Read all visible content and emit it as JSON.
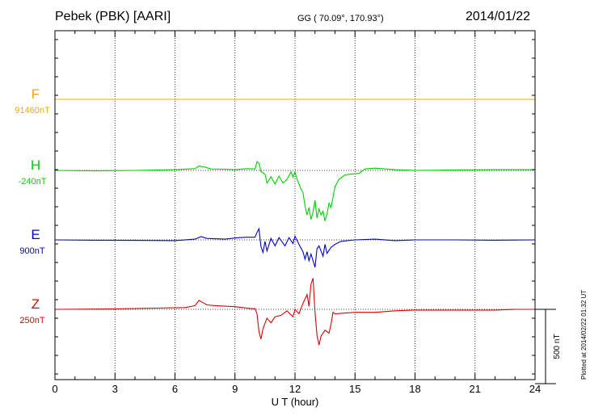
{
  "header": {
    "station": "Pebek (PBK)  [AARI]",
    "coords": "GG ( 70.09°, 170.93°)",
    "date": "2014/01/22"
  },
  "plotted_note": "Plotted at 2014/02/22 01:32 UT",
  "scale_label": "500 nT",
  "chart_data": {
    "type": "line",
    "xlabel": "U T (hour)",
    "xlim": [
      0,
      24
    ],
    "x_ticks": [
      "0",
      "3",
      "6",
      "9",
      "12",
      "15",
      "18",
      "21",
      "24"
    ],
    "scale_nT": 500,
    "series": [
      {
        "name": "F",
        "baseline_label": "91460nT",
        "color": "#f2a900",
        "points": [
          [
            0,
            0
          ],
          [
            24,
            0
          ]
        ]
      },
      {
        "name": "H",
        "baseline_label": "-240nT",
        "color": "#00d000",
        "points": [
          [
            0,
            0
          ],
          [
            2,
            -3
          ],
          [
            4,
            0
          ],
          [
            6,
            5
          ],
          [
            7,
            12
          ],
          [
            7.2,
            30
          ],
          [
            7.5,
            22
          ],
          [
            7.8,
            10
          ],
          [
            8.5,
            8
          ],
          [
            9,
            5
          ],
          [
            9.6,
            12
          ],
          [
            10,
            10
          ],
          [
            10.1,
            60
          ],
          [
            10.2,
            48
          ],
          [
            10.3,
            -8
          ],
          [
            10.5,
            -25
          ],
          [
            10.6,
            -85
          ],
          [
            10.8,
            -42
          ],
          [
            11,
            -92
          ],
          [
            11.2,
            -38
          ],
          [
            11.4,
            -85
          ],
          [
            11.6,
            -60
          ],
          [
            11.8,
            -10
          ],
          [
            11.9,
            -45
          ],
          [
            12,
            -10
          ],
          [
            12.1,
            -60
          ],
          [
            12.3,
            -125
          ],
          [
            12.4,
            -150
          ],
          [
            12.5,
            -240
          ],
          [
            12.6,
            -300
          ],
          [
            12.7,
            -250
          ],
          [
            12.8,
            -330
          ],
          [
            12.9,
            -280
          ],
          [
            13,
            -200
          ],
          [
            13.1,
            -320
          ],
          [
            13.2,
            -260
          ],
          [
            13.3,
            -300
          ],
          [
            13.4,
            -275
          ],
          [
            13.5,
            -340
          ],
          [
            13.6,
            -290
          ],
          [
            13.7,
            -220
          ],
          [
            13.8,
            -250
          ],
          [
            14,
            -110
          ],
          [
            14.2,
            -60
          ],
          [
            14.5,
            -30
          ],
          [
            14.8,
            -25
          ],
          [
            15.2,
            -20
          ],
          [
            15.5,
            10
          ],
          [
            16,
            15
          ],
          [
            17,
            5
          ],
          [
            18,
            0
          ],
          [
            20,
            3
          ],
          [
            22,
            5
          ],
          [
            24,
            5
          ]
        ]
      },
      {
        "name": "E",
        "baseline_label": "900nT",
        "color": "#0000d0",
        "points": [
          [
            0,
            0
          ],
          [
            2,
            -2
          ],
          [
            4,
            -3
          ],
          [
            6,
            -5
          ],
          [
            7,
            5
          ],
          [
            7.3,
            22
          ],
          [
            7.6,
            10
          ],
          [
            8.5,
            5
          ],
          [
            9.2,
            15
          ],
          [
            9.6,
            18
          ],
          [
            10,
            18
          ],
          [
            10.1,
            50
          ],
          [
            10.2,
            75
          ],
          [
            10.3,
            -45
          ],
          [
            10.4,
            -85
          ],
          [
            10.5,
            -10
          ],
          [
            10.6,
            -75
          ],
          [
            10.8,
            10
          ],
          [
            11,
            -40
          ],
          [
            11.2,
            15
          ],
          [
            11.5,
            -40
          ],
          [
            11.7,
            15
          ],
          [
            11.9,
            -25
          ],
          [
            12,
            25
          ],
          [
            12.2,
            -30
          ],
          [
            12.4,
            -80
          ],
          [
            12.5,
            -130
          ],
          [
            12.6,
            -80
          ],
          [
            12.7,
            -140
          ],
          [
            12.8,
            -95
          ],
          [
            13,
            -185
          ],
          [
            13.1,
            -60
          ],
          [
            13.2,
            -40
          ],
          [
            13.4,
            -110
          ],
          [
            13.5,
            -30
          ],
          [
            13.6,
            -90
          ],
          [
            13.8,
            -50
          ],
          [
            14,
            -30
          ],
          [
            14.3,
            -10
          ],
          [
            15,
            0
          ],
          [
            16,
            5
          ],
          [
            17,
            -5
          ],
          [
            18,
            0
          ],
          [
            20,
            0
          ],
          [
            22,
            -2
          ],
          [
            24,
            0
          ]
        ]
      },
      {
        "name": "Z",
        "baseline_label": "250nT",
        "color": "#e00000",
        "points": [
          [
            0,
            0
          ],
          [
            3,
            3
          ],
          [
            5,
            8
          ],
          [
            6.5,
            12
          ],
          [
            7,
            25
          ],
          [
            7.2,
            60
          ],
          [
            7.4,
            45
          ],
          [
            7.6,
            30
          ],
          [
            8,
            25
          ],
          [
            9,
            18
          ],
          [
            9.8,
            5
          ],
          [
            10,
            5
          ],
          [
            10.1,
            -30
          ],
          [
            10.2,
            -150
          ],
          [
            10.3,
            -200
          ],
          [
            10.4,
            -130
          ],
          [
            10.6,
            -60
          ],
          [
            10.8,
            -90
          ],
          [
            11,
            -50
          ],
          [
            11.3,
            -40
          ],
          [
            11.6,
            -10
          ],
          [
            11.9,
            -50
          ],
          [
            12,
            0
          ],
          [
            12.2,
            -30
          ],
          [
            12.4,
            40
          ],
          [
            12.6,
            100
          ],
          [
            12.7,
            20
          ],
          [
            12.8,
            170
          ],
          [
            12.9,
            210
          ],
          [
            13,
            -20
          ],
          [
            13.1,
            -175
          ],
          [
            13.2,
            -240
          ],
          [
            13.3,
            -180
          ],
          [
            13.5,
            -140
          ],
          [
            13.7,
            -160
          ],
          [
            13.8,
            -100
          ],
          [
            13.9,
            -20
          ],
          [
            14,
            -30
          ],
          [
            14.5,
            -25
          ],
          [
            15,
            -20
          ],
          [
            16,
            -20
          ],
          [
            17,
            -10
          ],
          [
            18,
            -5
          ],
          [
            20,
            -5
          ],
          [
            22,
            -5
          ],
          [
            23,
            0
          ],
          [
            24,
            0
          ]
        ]
      }
    ]
  }
}
